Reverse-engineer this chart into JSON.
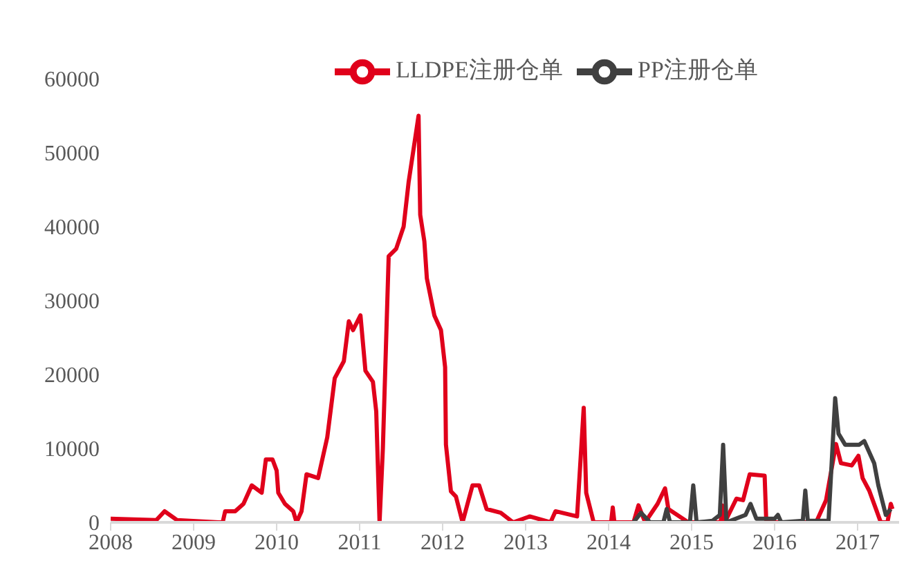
{
  "chart_data": {
    "type": "line",
    "xlim": [
      2008,
      2017.5
    ],
    "xticks": [
      2008,
      2009,
      2010,
      2011,
      2012,
      2013,
      2014,
      2015,
      2016,
      2017
    ],
    "ylim": [
      0,
      60000
    ],
    "yticks": [
      0,
      10000,
      20000,
      30000,
      40000,
      50000,
      60000
    ],
    "grid": false,
    "legend": "top",
    "marker": "none",
    "line_style": "solid",
    "series": [
      {
        "name": "LLDPE注册仓单",
        "color": "#e0001b",
        "x": [
          2008,
          2008.55,
          2008.65,
          2008.8,
          2009.3,
          2009.35,
          2009.38,
          2009.5,
          2009.6,
          2009.7,
          2009.82,
          2009.87,
          2009.95,
          2010,
          2010.02,
          2010.1,
          2010.2,
          2010.24,
          2010.3,
          2010.36,
          2010.5,
          2010.61,
          2010.7,
          2010.81,
          2010.87,
          2010.92,
          2011.01,
          2011.07,
          2011.16,
          2011.2,
          2011.24,
          2011.28,
          2011.35,
          2011.44,
          2011.53,
          2011.59,
          2011.67,
          2011.71,
          2011.73,
          2011.78,
          2011.81,
          2011.9,
          2011.98,
          2012.03,
          2012.04,
          2012.1,
          2012.16,
          2012.24,
          2012.36,
          2012.44,
          2012.53,
          2012.7,
          2012.85,
          2013.05,
          2013.3,
          2013.36,
          2013.62,
          2013.7,
          2013.73,
          2013.82,
          2014.03,
          2014.05,
          2014.07,
          2014.3,
          2014.36,
          2014.44,
          2014.59,
          2014.68,
          2014.72,
          2014.96,
          2015.35,
          2015.37,
          2015.4,
          2015.54,
          2015.62,
          2015.7,
          2015.88,
          2015.9,
          2016.5,
          2016.62,
          2016.74,
          2016.8,
          2016.93,
          2017.01,
          2017.06,
          2017.14,
          2017.28,
          2017.36,
          2017.4,
          2017.42
        ],
        "values": [
          500,
          300,
          1500,
          300,
          0,
          0,
          1500,
          1500,
          2500,
          5000,
          4000,
          8500,
          8500,
          7000,
          4000,
          2500,
          1500,
          0,
          1500,
          6500,
          6000,
          11500,
          19500,
          21800,
          27200,
          26000,
          28000,
          20500,
          19000,
          15000,
          0,
          10000,
          36000,
          37000,
          40000,
          46000,
          52000,
          55000,
          41600,
          38000,
          33000,
          28000,
          26000,
          21000,
          10500,
          4200,
          3500,
          0,
          5000,
          5000,
          1800,
          1300,
          0,
          800,
          0,
          1500,
          800,
          15500,
          4000,
          0,
          0,
          2000,
          0,
          0,
          2300,
          0,
          2500,
          4600,
          1800,
          0,
          0,
          2300,
          0,
          3200,
          3000,
          6500,
          6300,
          0,
          0,
          3000,
          10600,
          8000,
          7700,
          9000,
          6000,
          4300,
          0,
          0,
          2500,
          1800
        ]
      },
      {
        "name": "PP注册仓单",
        "color": "#404040",
        "x": [
          2014.3,
          2014.39,
          2014.5,
          2014.66,
          2014.7,
          2014.74,
          2014.98,
          2015.02,
          2015.06,
          2015.25,
          2015.34,
          2015.38,
          2015.42,
          2015.65,
          2015.71,
          2015.78,
          2016.0,
          2016.04,
          2016.08,
          2016.34,
          2016.37,
          2016.4,
          2016.65,
          2016.73,
          2016.77,
          2016.85,
          2017.02,
          2017.08,
          2017.2,
          2017.25,
          2017.34,
          2017.4
        ],
        "values": [
          0,
          1300,
          0,
          0,
          1800,
          0,
          0,
          5000,
          0,
          200,
          1000,
          10500,
          0,
          1000,
          2500,
          500,
          500,
          1000,
          0,
          200,
          4300,
          200,
          200,
          16800,
          12000,
          10500,
          10500,
          11000,
          8000,
          5000,
          1000,
          1800
        ]
      }
    ]
  }
}
